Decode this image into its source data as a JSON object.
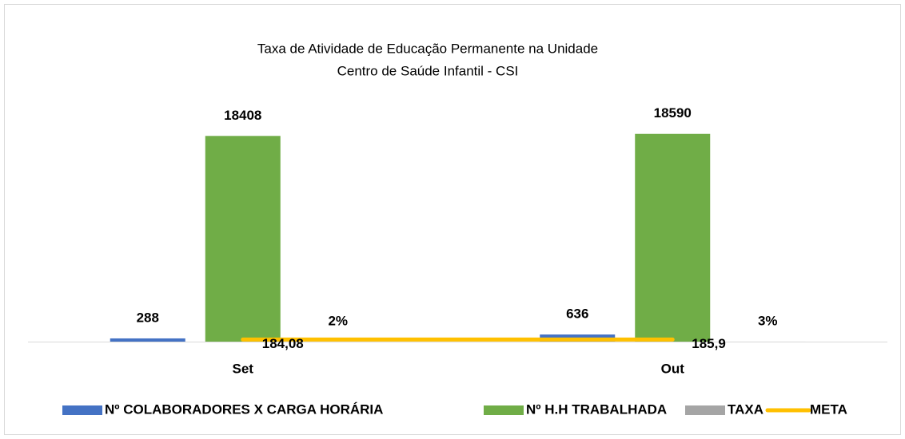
{
  "chart_data": {
    "type": "bar",
    "title": "Taxa de Atividade de Educação Permanente na Unidade",
    "subtitle": "Centro de Saúde Infantil - CSI",
    "categories": [
      "Set",
      "Out"
    ],
    "ylim": [
      0,
      20000
    ],
    "series": [
      {
        "name": "Nº COLABORADORES X CARGA HORÁRIA",
        "color": "#4472c4",
        "values": [
          288,
          636
        ]
      },
      {
        "name": "Nº H.H TRABALHADA",
        "color": "#70ad47",
        "values": [
          18408,
          18590
        ]
      },
      {
        "name": "TAXA",
        "color": "#a5a5a5",
        "values": [
          2,
          3
        ],
        "value_labels": [
          "2%",
          "3%"
        ]
      },
      {
        "name": "META",
        "type": "line",
        "color": "#ffc000",
        "values": [
          184.08,
          185.9
        ],
        "value_labels": [
          "184,08",
          "185,9"
        ]
      }
    ]
  }
}
